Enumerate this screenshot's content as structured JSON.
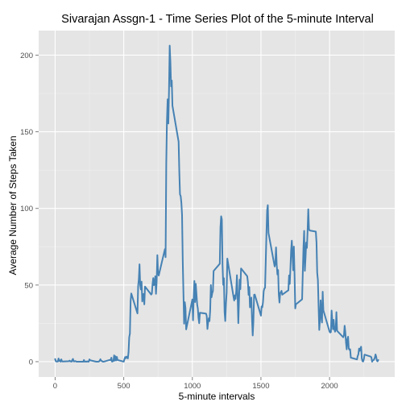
{
  "chart_data": {
    "type": "line",
    "title": "Sivarajan Assgn-1 - Time Series Plot of the 5-minute Interval",
    "xlabel": "5-minute intervals",
    "ylabel": "Average Number of Steps Taken",
    "xlim": [
      -120,
      2475
    ],
    "ylim": [
      -10,
      216
    ],
    "x_ticks": [
      0,
      500,
      1000,
      1500,
      2000
    ],
    "y_ticks": [
      0,
      50,
      100,
      150,
      200
    ],
    "grid": true,
    "legend": "none",
    "colors": {
      "line": "#4682b4",
      "panel": "#e5e5e5",
      "grid_major": "#ffffff",
      "grid_minor": "#f0f0f0",
      "tick_text": "#4d4d4d"
    },
    "series": [
      {
        "points": [
          [
            0,
            1.7
          ],
          [
            5,
            0.3
          ],
          [
            10,
            0.1
          ],
          [
            15,
            0.2
          ],
          [
            20,
            0.1
          ],
          [
            25,
            2.1
          ],
          [
            30,
            0.5
          ],
          [
            35,
            0.9
          ],
          [
            40,
            0
          ],
          [
            45,
            1.5
          ],
          [
            50,
            0.3
          ],
          [
            55,
            0.1
          ],
          [
            100,
            0.3
          ],
          [
            105,
            0.7
          ],
          [
            110,
            0.2
          ],
          [
            115,
            0.3
          ],
          [
            120,
            0
          ],
          [
            125,
            1.1
          ],
          [
            130,
            1.8
          ],
          [
            135,
            0.2
          ],
          [
            140,
            0.2
          ],
          [
            145,
            0.4
          ],
          [
            150,
            0.3
          ],
          [
            155,
            0
          ],
          [
            200,
            0
          ],
          [
            205,
            0
          ],
          [
            210,
            1.1
          ],
          [
            215,
            0
          ],
          [
            220,
            0
          ],
          [
            225,
            0.1
          ],
          [
            230,
            0
          ],
          [
            235,
            0.2
          ],
          [
            240,
            0
          ],
          [
            245,
            0
          ],
          [
            250,
            1.5
          ],
          [
            255,
            0.9
          ],
          [
            300,
            0
          ],
          [
            305,
            0
          ],
          [
            310,
            0
          ],
          [
            315,
            0
          ],
          [
            320,
            0.2
          ],
          [
            325,
            0.6
          ],
          [
            330,
            1.6
          ],
          [
            335,
            0.6
          ],
          [
            340,
            0.5
          ],
          [
            345,
            0.1
          ],
          [
            350,
            0
          ],
          [
            355,
            0
          ],
          [
            400,
            1.2
          ],
          [
            405,
            0.9
          ],
          [
            410,
            2.6
          ],
          [
            415,
            0
          ],
          [
            420,
            0.3
          ],
          [
            425,
            0.4
          ],
          [
            430,
            4.1
          ],
          [
            435,
            0.7
          ],
          [
            440,
            3.5
          ],
          [
            445,
            0.8
          ],
          [
            450,
            3.1
          ],
          [
            455,
            1.1
          ],
          [
            500,
            0
          ],
          [
            505,
            1.6
          ],
          [
            510,
            3
          ],
          [
            515,
            2.2
          ],
          [
            520,
            3.3
          ],
          [
            525,
            3
          ],
          [
            530,
            2.1
          ],
          [
            535,
            6.1
          ],
          [
            540,
            16
          ],
          [
            545,
            18.3
          ],
          [
            550,
            39.5
          ],
          [
            555,
            44.5
          ],
          [
            600,
            31.5
          ],
          [
            605,
            49.3
          ],
          [
            610,
            53.8
          ],
          [
            615,
            63.5
          ],
          [
            620,
            50
          ],
          [
            625,
            47.1
          ],
          [
            630,
            52.2
          ],
          [
            635,
            39.3
          ],
          [
            640,
            44
          ],
          [
            645,
            44.2
          ],
          [
            650,
            37.4
          ],
          [
            655,
            49
          ],
          [
            700,
            43.8
          ],
          [
            705,
            44.4
          ],
          [
            710,
            50.5
          ],
          [
            715,
            54.5
          ],
          [
            720,
            49.9
          ],
          [
            725,
            51
          ],
          [
            730,
            55.7
          ],
          [
            735,
            44.3
          ],
          [
            740,
            52.3
          ],
          [
            745,
            69.5
          ],
          [
            750,
            57.8
          ],
          [
            755,
            56.2
          ],
          [
            800,
            73.4
          ],
          [
            805,
            68.2
          ],
          [
            810,
            129.4
          ],
          [
            815,
            157.5
          ],
          [
            820,
            171.2
          ],
          [
            825,
            155.4
          ],
          [
            830,
            177.3
          ],
          [
            835,
            206.2
          ],
          [
            840,
            195.9
          ],
          [
            845,
            179.6
          ],
          [
            850,
            183.4
          ],
          [
            855,
            167
          ],
          [
            900,
            143.5
          ],
          [
            905,
            124
          ],
          [
            910,
            109.1
          ],
          [
            915,
            108.1
          ],
          [
            920,
            103.7
          ],
          [
            925,
            95.9
          ],
          [
            930,
            66.2
          ],
          [
            935,
            45.2
          ],
          [
            940,
            24.8
          ],
          [
            945,
            38.8
          ],
          [
            950,
            34.98
          ],
          [
            955,
            21.06
          ],
          [
            1000,
            40.57
          ],
          [
            1005,
            26.98
          ],
          [
            1010,
            42.42
          ],
          [
            1015,
            52.66
          ],
          [
            1020,
            38.92
          ],
          [
            1025,
            50.79
          ],
          [
            1030,
            44.28
          ],
          [
            1035,
            37.42
          ],
          [
            1040,
            34.7
          ],
          [
            1045,
            28.34
          ],
          [
            1050,
            25.09
          ],
          [
            1055,
            31.94
          ],
          [
            1100,
            31.36
          ],
          [
            1105,
            29.68
          ],
          [
            1110,
            21.32
          ],
          [
            1115,
            25.55
          ],
          [
            1120,
            28.38
          ],
          [
            1125,
            26.47
          ],
          [
            1130,
            33.43
          ],
          [
            1135,
            49.98
          ],
          [
            1140,
            42.04
          ],
          [
            1145,
            44.6
          ],
          [
            1150,
            46.04
          ],
          [
            1155,
            59.19
          ],
          [
            1200,
            63.87
          ],
          [
            1205,
            87.7
          ],
          [
            1210,
            94.85
          ],
          [
            1215,
            92.77
          ],
          [
            1220,
            63.4
          ],
          [
            1225,
            50.17
          ],
          [
            1230,
            54.47
          ],
          [
            1235,
            32.42
          ],
          [
            1240,
            26.53
          ],
          [
            1245,
            37.74
          ],
          [
            1250,
            45.06
          ],
          [
            1255,
            67.28
          ],
          [
            1300,
            42.34
          ],
          [
            1305,
            39.89
          ],
          [
            1310,
            43.26
          ],
          [
            1315,
            40.98
          ],
          [
            1320,
            46.25
          ],
          [
            1325,
            56.43
          ],
          [
            1330,
            42.75
          ],
          [
            1335,
            25.13
          ],
          [
            1340,
            39.96
          ],
          [
            1345,
            53.55
          ],
          [
            1350,
            47.32
          ],
          [
            1355,
            60.81
          ],
          [
            1400,
            55.75
          ],
          [
            1405,
            51.96
          ],
          [
            1410,
            43.58
          ],
          [
            1415,
            48.7
          ],
          [
            1420,
            35.47
          ],
          [
            1425,
            37.55
          ],
          [
            1430,
            41.85
          ],
          [
            1435,
            27.51
          ],
          [
            1440,
            17.11
          ],
          [
            1445,
            26.08
          ],
          [
            1450,
            43.62
          ],
          [
            1455,
            43.77
          ],
          [
            1500,
            30.02
          ],
          [
            1505,
            36.08
          ],
          [
            1510,
            35.49
          ],
          [
            1515,
            38.85
          ],
          [
            1520,
            45.96
          ],
          [
            1525,
            47.75
          ],
          [
            1530,
            48.13
          ],
          [
            1535,
            65.32
          ],
          [
            1540,
            82.91
          ],
          [
            1545,
            98.66
          ],
          [
            1550,
            102.11
          ],
          [
            1555,
            83.96
          ],
          [
            1600,
            62.13
          ],
          [
            1605,
            64.13
          ],
          [
            1610,
            74.55
          ],
          [
            1615,
            63.17
          ],
          [
            1620,
            56.91
          ],
          [
            1625,
            59.77
          ],
          [
            1630,
            43.87
          ],
          [
            1635,
            38.57
          ],
          [
            1640,
            44.66
          ],
          [
            1645,
            45.45
          ],
          [
            1650,
            46.21
          ],
          [
            1655,
            43.68
          ],
          [
            1700,
            46.62
          ],
          [
            1705,
            56.3
          ],
          [
            1710,
            50.72
          ],
          [
            1715,
            61.23
          ],
          [
            1720,
            72.72
          ],
          [
            1725,
            78.94
          ],
          [
            1730,
            68.94
          ],
          [
            1735,
            59.66
          ],
          [
            1740,
            75.09
          ],
          [
            1745,
            56.51
          ],
          [
            1750,
            34.77
          ],
          [
            1755,
            37.45
          ],
          [
            1800,
            40.68
          ],
          [
            1805,
            58.02
          ],
          [
            1810,
            74.7
          ],
          [
            1815,
            85.32
          ],
          [
            1820,
            59.26
          ],
          [
            1825,
            67.77
          ],
          [
            1830,
            77.7
          ],
          [
            1835,
            74.25
          ],
          [
            1840,
            85.34
          ],
          [
            1845,
            99.45
          ],
          [
            1850,
            86.58
          ],
          [
            1855,
            85.6
          ],
          [
            1900,
            84.87
          ],
          [
            1905,
            77.83
          ],
          [
            1910,
            58.04
          ],
          [
            1915,
            53.36
          ],
          [
            1920,
            36.32
          ],
          [
            1925,
            20.72
          ],
          [
            1930,
            27.4
          ],
          [
            1935,
            40.02
          ],
          [
            1940,
            30.21
          ],
          [
            1945,
            25.55
          ],
          [
            1950,
            45.66
          ],
          [
            1955,
            33.53
          ],
          [
            2000,
            19.62
          ],
          [
            2005,
            19.02
          ],
          [
            2010,
            19.34
          ],
          [
            2015,
            33.34
          ],
          [
            2020,
            26.81
          ],
          [
            2025,
            21.17
          ],
          [
            2030,
            27.3
          ],
          [
            2035,
            21.34
          ],
          [
            2040,
            19.55
          ],
          [
            2045,
            21.32
          ],
          [
            2050,
            32.3
          ],
          [
            2055,
            20.15
          ],
          [
            2100,
            15.94
          ],
          [
            2105,
            17.23
          ],
          [
            2110,
            23.45
          ],
          [
            2115,
            19.25
          ],
          [
            2120,
            12.45
          ],
          [
            2125,
            8.02
          ],
          [
            2130,
            14.66
          ],
          [
            2135,
            16.3
          ],
          [
            2140,
            8.68
          ],
          [
            2145,
            7.79
          ],
          [
            2150,
            8.13
          ],
          [
            2155,
            2.62
          ],
          [
            2200,
            1.45
          ],
          [
            2205,
            3.68
          ],
          [
            2210,
            4.81
          ],
          [
            2215,
            8.51
          ],
          [
            2220,
            7.08
          ],
          [
            2225,
            8.7
          ],
          [
            2230,
            9.75
          ],
          [
            2235,
            2.21
          ],
          [
            2240,
            0.32
          ],
          [
            2245,
            0.11
          ],
          [
            2250,
            1.6
          ],
          [
            2255,
            4.6
          ],
          [
            2300,
            3.3
          ],
          [
            2305,
            2.85
          ],
          [
            2310,
            0
          ],
          [
            2315,
            0.83
          ],
          [
            2320,
            0.96
          ],
          [
            2325,
            1.58
          ],
          [
            2330,
            2.6
          ],
          [
            2335,
            4.7
          ],
          [
            2340,
            3.3
          ],
          [
            2345,
            0.64
          ],
          [
            2350,
            0.23
          ],
          [
            2355,
            1.08
          ]
        ]
      }
    ]
  }
}
